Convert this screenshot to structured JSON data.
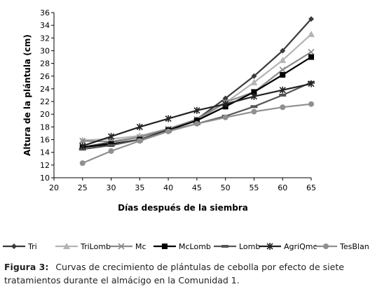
{
  "chart_data": {
    "type": "line",
    "xlabel": "Días después de la siembra",
    "ylabel": "Altura de la plántula (cm)",
    "xlim": [
      20,
      65
    ],
    "ylim": [
      10,
      36
    ],
    "x_ticks": [
      20,
      25,
      30,
      35,
      40,
      45,
      50,
      55,
      60,
      65
    ],
    "y_ticks": [
      10,
      12,
      14,
      16,
      18,
      20,
      22,
      24,
      26,
      28,
      30,
      32,
      34,
      36
    ],
    "x": [
      25,
      30,
      35,
      40,
      45,
      50,
      55,
      60,
      65
    ],
    "grid": false,
    "legend_position": "bottom",
    "series": [
      {
        "name": "Tri",
        "color": "#3a3a3a",
        "marker": "diamond",
        "values": [
          14.8,
          15.6,
          16.4,
          17.6,
          19.2,
          22.5,
          26.0,
          30.0,
          35.0
        ]
      },
      {
        "name": "TriLomb",
        "color": "#b4b4b4",
        "marker": "triangle",
        "values": [
          15.9,
          16.1,
          16.6,
          17.7,
          19.0,
          21.8,
          25.0,
          28.5,
          32.6
        ]
      },
      {
        "name": "Mc",
        "color": "#8a8a8a",
        "marker": "x",
        "values": [
          15.8,
          15.7,
          16.4,
          17.7,
          19.2,
          21.9,
          23.5,
          27.0,
          29.8
        ]
      },
      {
        "name": "McLomb",
        "color": "#000000",
        "marker": "square",
        "values": [
          14.8,
          15.3,
          16.0,
          17.5,
          19.0,
          21.2,
          23.5,
          26.2,
          29.0
        ]
      },
      {
        "name": "Lomb",
        "color": "#555555",
        "marker": "dash",
        "values": [
          14.5,
          15.1,
          16.0,
          17.4,
          18.5,
          19.7,
          21.2,
          23.0,
          25.0
        ]
      },
      {
        "name": "AgriQmc",
        "color": "#222222",
        "marker": "star",
        "values": [
          15.0,
          16.5,
          18.0,
          19.3,
          20.6,
          21.6,
          22.8,
          23.8,
          24.8
        ]
      },
      {
        "name": "TesBlan",
        "color": "#8f8f8f",
        "marker": "circle",
        "values": [
          12.3,
          14.2,
          15.8,
          17.3,
          18.5,
          19.5,
          20.4,
          21.1,
          21.6
        ]
      }
    ]
  },
  "caption": {
    "label": "Figura 3:",
    "text": "Curvas de crecimiento de plántulas de cebolla por efecto de siete tratamientos durante el almácigo en la Comunidad 1."
  }
}
